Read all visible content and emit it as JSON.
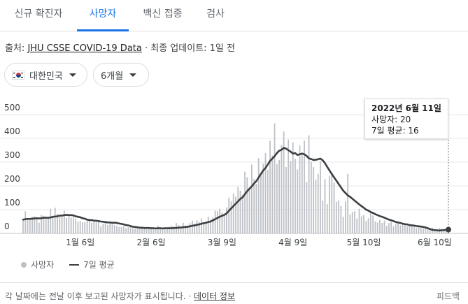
{
  "tabs": [
    {
      "label": "신규 확진자",
      "active": false
    },
    {
      "label": "사망자",
      "active": true
    },
    {
      "label": "백신 접종",
      "active": false
    },
    {
      "label": "검사",
      "active": false
    }
  ],
  "source": {
    "prefix": "출처: ",
    "link": "JHU CSSE COVID-19 Data",
    "suffix": " · 최종 업데이트: 1일 전"
  },
  "filters": {
    "country": "대한민국",
    "period": "6개월"
  },
  "tooltip": {
    "date": "2022년 6월 11일",
    "deaths": "사망자: 20",
    "avg": "7일 평균: 16"
  },
  "legend": {
    "bars": "사망자",
    "line": "7일 평균"
  },
  "footer": {
    "note": "각 날짜에는 전날 이후 보고된 사망자가 표시됩니다.",
    "sep": " · ",
    "link": "데이터 정보",
    "feedback": "피드백"
  },
  "colors": {
    "accent": "#1a73e8",
    "bar": "#bdc1c6",
    "line": "#3c4043"
  },
  "chart_data": {
    "type": "bar",
    "x_range": [
      "2021-12-12",
      "2022-06-11"
    ],
    "ylim": [
      0,
      500
    ],
    "y_ticks": [
      0,
      100,
      200,
      300,
      400,
      500
    ],
    "x_tick_labels": [
      "1월 6일",
      "2월 6일",
      "3월 9일",
      "4월 9일",
      "5월 10일",
      "6월 10일"
    ],
    "series": [
      {
        "name": "사망자",
        "type": "bar",
        "values": [
          58,
          93,
          64,
          61,
          70,
          72,
          66,
          45,
          78,
          74,
          64,
          67,
          104,
          68,
          108,
          82,
          70,
          73,
          96,
          65,
          74,
          66,
          70,
          62,
          49,
          52,
          47,
          48,
          58,
          57,
          45,
          50,
          46,
          47,
          30,
          40,
          47,
          35,
          42,
          45,
          35,
          31,
          28,
          28,
          30,
          22,
          26,
          27,
          21,
          20,
          26,
          23,
          22,
          22,
          20,
          24,
          18,
          18,
          24,
          32,
          23,
          20,
          23,
          24,
          28,
          33,
          23,
          44,
          36,
          27,
          45,
          32,
          34,
          43,
          54,
          40,
          55,
          48,
          63,
          46,
          47,
          71,
          58,
          67,
          96,
          94,
          104,
          87,
          84,
          110,
          150,
          135,
          168,
          154,
          196,
          180,
          162,
          260,
          237,
          188,
          290,
          229,
          208,
          317,
          242,
          293,
          338,
          268,
          390,
          328,
          463,
          291,
          309,
          372,
          429,
          279,
          395,
          305,
          383,
          314,
          269,
          370,
          334,
          390,
          216,
          413,
          301,
          279,
          226,
          251,
          304,
          138,
          228,
          123,
          242,
          254,
          214,
          133,
          139,
          115,
          70,
          135,
          251,
          80,
          90,
          93,
          63,
          104,
          72,
          77,
          53,
          64,
          85,
          75,
          51,
          46,
          57,
          44,
          54,
          32,
          44,
          49,
          30,
          40,
          42,
          34,
          39,
          38,
          30,
          32,
          31,
          32,
          24,
          33,
          29,
          20,
          26,
          17,
          12,
          24,
          16,
          14,
          23,
          20,
          14,
          22,
          20
        ]
      },
      {
        "name": "7일 평균",
        "type": "line",
        "values": [
          58,
          60,
          61,
          61,
          62,
          63,
          64,
          63,
          64,
          66,
          66,
          66,
          67,
          70,
          71,
          72,
          75,
          75,
          77,
          78,
          77,
          77,
          76,
          72,
          70,
          68,
          64,
          62,
          58,
          56,
          56,
          54,
          53,
          52,
          50,
          49,
          48,
          46,
          46,
          45,
          45,
          44,
          42,
          40,
          38,
          35,
          34,
          31,
          28,
          27,
          26,
          24,
          24,
          23,
          23,
          23,
          22,
          22,
          21,
          22,
          22,
          21,
          22,
          22,
          22,
          22,
          23,
          23,
          24,
          25,
          26,
          27,
          28,
          30,
          32,
          34,
          36,
          38,
          41,
          43,
          45,
          48,
          50,
          55,
          60,
          65,
          70,
          74,
          78,
          84,
          95,
          105,
          115,
          125,
          135,
          145,
          152,
          165,
          178,
          188,
          198,
          210,
          220,
          235,
          250,
          265,
          275,
          290,
          305,
          315,
          325,
          338,
          348,
          352,
          360,
          357,
          350,
          344,
          336,
          338,
          330,
          333,
          336,
          333,
          326,
          316,
          313,
          309,
          310,
          312,
          315,
          308,
          296,
          280,
          265,
          250,
          236,
          222,
          208,
          194,
          180,
          170,
          160,
          154,
          146,
          138,
          130,
          122,
          115,
          108,
          100,
          96,
          90,
          86,
          81,
          77,
          73,
          70,
          66,
          62,
          58,
          55,
          52,
          48,
          46,
          44,
          41,
          39,
          38,
          35,
          34,
          33,
          31,
          30,
          29,
          27,
          25,
          22,
          18,
          15,
          14,
          13,
          12,
          13,
          14,
          15,
          16
        ]
      }
    ]
  }
}
